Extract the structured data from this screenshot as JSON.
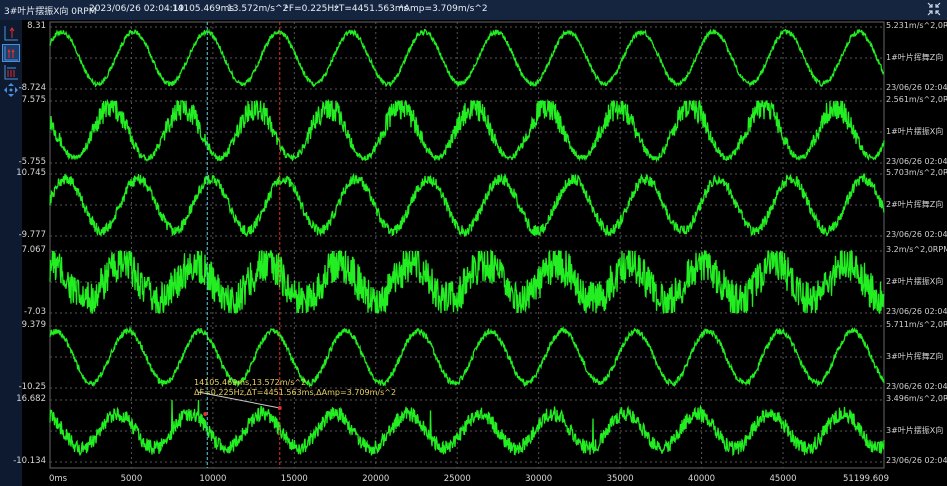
{
  "header": {
    "channel": "3#叶片摆振X向 0RPM",
    "datetime": "2023/06/26 02:04:19",
    "cursor_time": "14105.469ms",
    "cursor_value": "13.572m/s^2",
    "delta_f": "ᐞF=0.225Hz",
    "delta_t": "ᐞT=4451.563ms",
    "delta_amp": "ᐞAmp=3.709m/s^2",
    "collapse_icon": "collapse-arrows-icon"
  },
  "toolbar": {
    "icons": [
      "single-axis-icon",
      "dual-axis-icon",
      "multi-axis-icon",
      "move-icon"
    ]
  },
  "annotation": {
    "line1": "14105.469ms,13.572m/s^2",
    "line2": "ΔF=0.225Hz,ΔT=4451.563ms,ΔAmp=3.709m/s^2"
  },
  "colors": {
    "trace": "#22ee22",
    "cursor_a": "#5fd0e0",
    "cursor_b": "#e03030",
    "header_bg": "#16253f"
  },
  "chart_data": {
    "type": "line",
    "x_ticks": [
      "0ms",
      "5000",
      "10000",
      "15000",
      "20000",
      "25000",
      "30000",
      "35000",
      "40000",
      "45000",
      "51199.609"
    ],
    "xlim": [
      0,
      51199.609
    ],
    "cursors_ms": [
      9653.906,
      14105.469
    ],
    "period_ms": 4451.563,
    "channels": [
      {
        "ymax": "8.31",
        "ymin": "-8.724",
        "top_label": "5.231m/s^2,0RPM",
        "name": "1#叶片挥舞Z向",
        "bottom_label": "23/06/26 02:04:19"
      },
      {
        "ymax": "7.575",
        "ymin": "-5.755",
        "top_label": "2.561m/s^2,0RPM",
        "name": "1#叶片摆振X向",
        "bottom_label": "23/06/26 02:04:19"
      },
      {
        "ymax": "10.745",
        "ymin": "-9.777",
        "top_label": "5.703m/s^2,0RPM",
        "name": "2#叶片挥舞Z向",
        "bottom_label": "23/06/26 02:04:19"
      },
      {
        "ymax": "7.067",
        "ymin": "-7.03",
        "top_label": "3.2m/s^2,0RPM",
        "name": "2#叶片摆振X向",
        "bottom_label": "23/06/26 02:04:19"
      },
      {
        "ymax": "9.379",
        "ymin": "-10.25",
        "top_label": "5.711m/s^2,0RPM",
        "name": "3#叶片挥舞Z向",
        "bottom_label": "23/06/26 02:04:19"
      },
      {
        "ymax": "16.682",
        "ymin": "-10.134",
        "top_label": "3.496m/s^2,0RPM",
        "name": "3#叶片摆振X向",
        "bottom_label": "23/06/26 02:04:19"
      }
    ]
  }
}
